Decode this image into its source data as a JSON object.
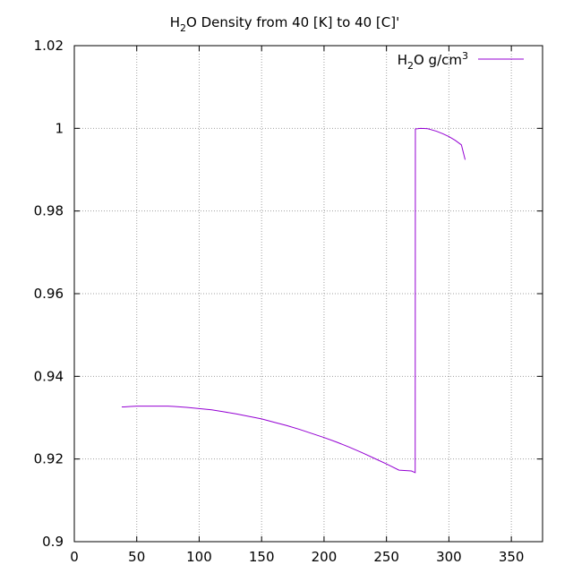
{
  "chart_data": {
    "type": "line",
    "title": {
      "p1": "H",
      "sub": "2",
      "p2": "O Density from 40 [K] to 40 [C]'"
    },
    "xlabel": "",
    "ylabel": "",
    "xlim": [
      0,
      375
    ],
    "ylim": [
      0.9,
      1.02
    ],
    "grid": true,
    "legend_position": "top-right",
    "x_ticks": [
      0,
      50,
      100,
      150,
      200,
      250,
      300,
      350
    ],
    "y_ticks": [
      0.9,
      0.92,
      0.94,
      0.96,
      0.98,
      1,
      1.02
    ],
    "x_tick_labels": [
      "0",
      "50",
      "100",
      "150",
      "200",
      "250",
      "300",
      "350"
    ],
    "y_tick_labels": [
      "0.9",
      "0.92",
      "0.94",
      "0.96",
      "0.98",
      "1",
      "1.02"
    ],
    "series": [
      {
        "name": {
          "p1": "H",
          "sub": "2",
          "p2": "O g/cm",
          "sup": "3"
        },
        "color": "#9400d3",
        "x": [
          38,
          40,
          45,
          50,
          55,
          60,
          65,
          70,
          75,
          80,
          90,
          100,
          110,
          120,
          130,
          140,
          150,
          160,
          170,
          180,
          190,
          200,
          210,
          220,
          230,
          240,
          250,
          260,
          270,
          273,
          273.15,
          275,
          277,
          280,
          283,
          286,
          290,
          295,
          300,
          305,
          310,
          313
        ],
        "y": [
          0.9326,
          0.9326,
          0.9327,
          0.9328,
          0.9328,
          0.9328,
          0.9328,
          0.9328,
          0.9328,
          0.9327,
          0.9325,
          0.9322,
          0.9319,
          0.9314,
          0.9309,
          0.9303,
          0.9297,
          0.9289,
          0.9281,
          0.9272,
          0.9262,
          0.9252,
          0.9241,
          0.9229,
          0.9216,
          0.9202,
          0.9188,
          0.9173,
          0.9171,
          0.9167,
          0.99985,
          0.9999,
          1.0,
          0.99995,
          0.9999,
          0.99965,
          0.9993,
          0.9987,
          0.998,
          0.9971,
          0.996,
          0.9924
        ]
      }
    ]
  }
}
